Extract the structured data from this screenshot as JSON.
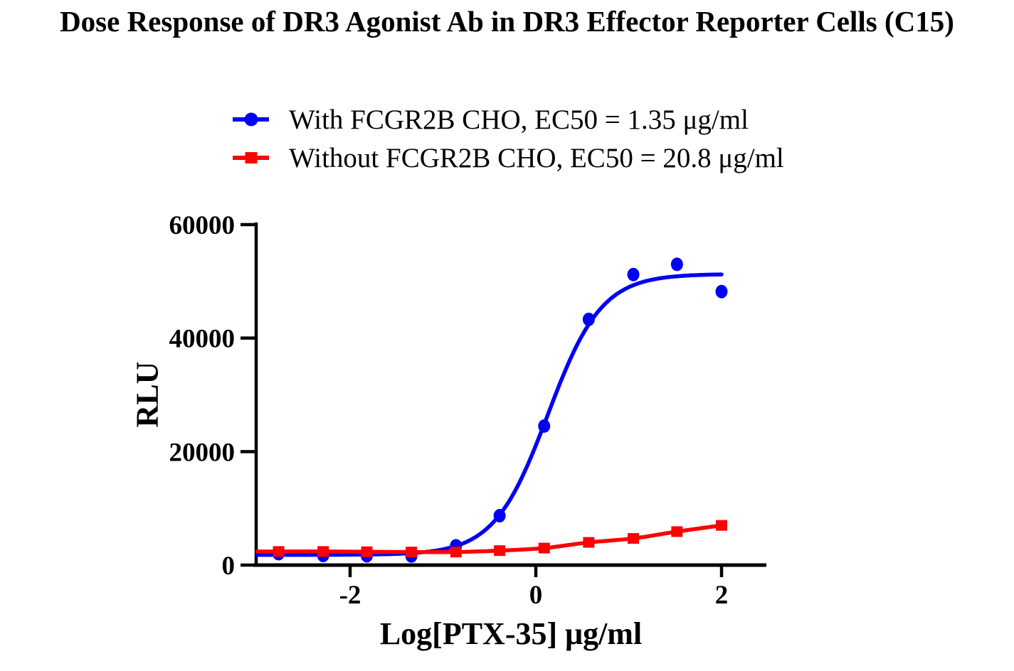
{
  "title": "Dose Response of DR3 Agonist Ab in DR3 Effector Reporter Cells (C15)",
  "legend": [
    {
      "label": "With FCGR2B CHO, EC50 = 1.35 μg/ml",
      "color": "#0202f2",
      "marker": "circle"
    },
    {
      "label": "Without FCGR2B CHO, EC50 = 20.8 μg/ml",
      "color": "#fb0303",
      "marker": "square"
    }
  ],
  "chart_data": {
    "type": "scatter",
    "title": "Dose Response of DR3 Agonist Ab in DR3 Effector Reporter Cells (C15)",
    "xlabel": "Log[PTX-35] μg/ml",
    "ylabel": "RLU",
    "xlim": [
      -3.0,
      2.48
    ],
    "ylim": [
      0,
      60000
    ],
    "x_ticks": [
      -2,
      0,
      2
    ],
    "y_ticks": [
      0,
      20000,
      40000,
      60000
    ],
    "grid": false,
    "legend_position": "top",
    "x": [
      -2.77,
      -2.29,
      -1.82,
      -1.34,
      -0.86,
      -0.39,
      0.09,
      0.57,
      1.05,
      1.52,
      2.0
    ],
    "series": [
      {
        "id": "with-fcgr2b-cho",
        "name": "With FCGR2B CHO",
        "ec50_ug_ml": 1.35,
        "marker": "circle",
        "color": "#0202f2",
        "values": [
          2000,
          1700,
          1650,
          1600,
          3400,
          8700,
          24500,
          43300,
          51200,
          53000,
          48200
        ],
        "fit": {
          "type": "4PL",
          "bottom": 1800,
          "top": 51300,
          "logEC50": 0.13,
          "hill": 1.5
        }
      },
      {
        "id": "without-fcgr2b-cho",
        "name": "Without FCGR2B CHO",
        "ec50_ug_ml": 20.8,
        "marker": "square",
        "color": "#fb0303",
        "values": [
          2400,
          2400,
          2350,
          2300,
          2300,
          2550,
          3000,
          4000,
          4700,
          5900,
          7000
        ],
        "fit": {
          "type": "spline"
        }
      }
    ]
  }
}
